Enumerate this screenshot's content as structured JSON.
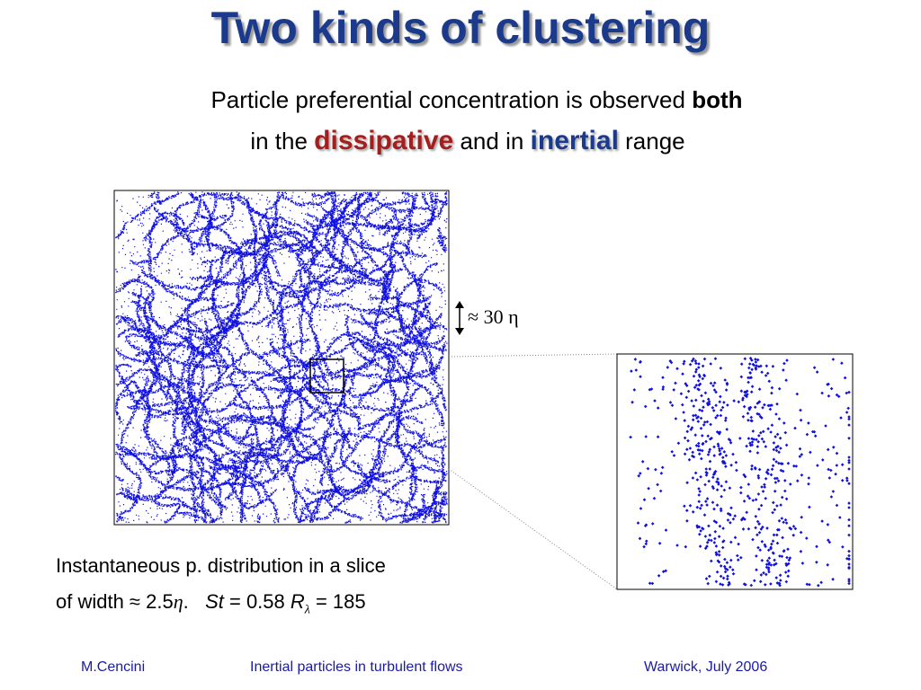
{
  "title": "Two kinds of clustering",
  "subtitle": {
    "line1": [
      "Particle preferential concentration is observed ",
      "both"
    ],
    "line2": [
      "in the ",
      "dissipative",
      " and in ",
      "inertial",
      " range"
    ]
  },
  "scale_label": "≈ 30 η",
  "caption": {
    "line1": "Instantaneous p. distribution in a slice",
    "line2": [
      "of width ≈ 2.5",
      "η",
      ".   ",
      "St",
      " = 0.58 ",
      "R",
      "λ",
      " = 185"
    ]
  },
  "footer": {
    "author": "M.Cencini",
    "topic": "Inertial particles in turbulent flows",
    "venue": "Warwick, July 2006"
  }
}
